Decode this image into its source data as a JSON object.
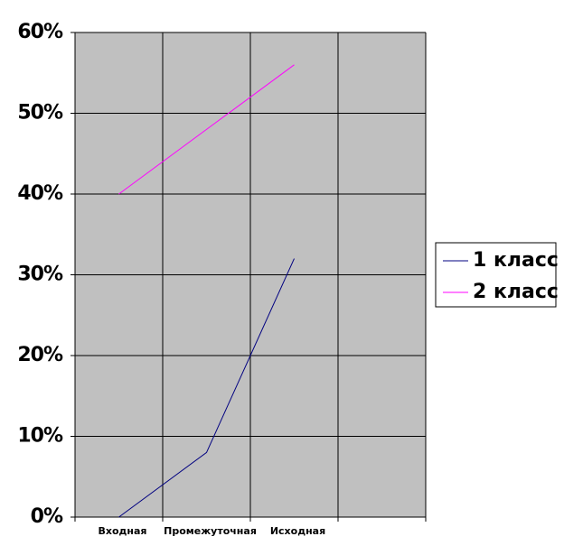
{
  "chart_data": {
    "type": "line",
    "categories": [
      "Входная",
      "Промежуточная",
      "Исходная",
      null
    ],
    "series": [
      {
        "name": "1 класс",
        "color": "#000080",
        "values": [
          0,
          8,
          32,
          null
        ]
      },
      {
        "name": "2 класс",
        "color": "#ff00ff",
        "values": [
          40,
          48,
          56,
          null
        ]
      }
    ],
    "ylim": [
      0,
      60
    ],
    "yticks": [
      {
        "value": 0,
        "label": "0%"
      },
      {
        "value": 10,
        "label": "10%"
      },
      {
        "value": 20,
        "label": "20%"
      },
      {
        "value": 30,
        "label": "30%"
      },
      {
        "value": 40,
        "label": "40%"
      },
      {
        "value": 50,
        "label": "50%"
      },
      {
        "value": 60,
        "label": "60%"
      }
    ],
    "grid": true,
    "background": "#c0c0c0",
    "legend": "right"
  }
}
